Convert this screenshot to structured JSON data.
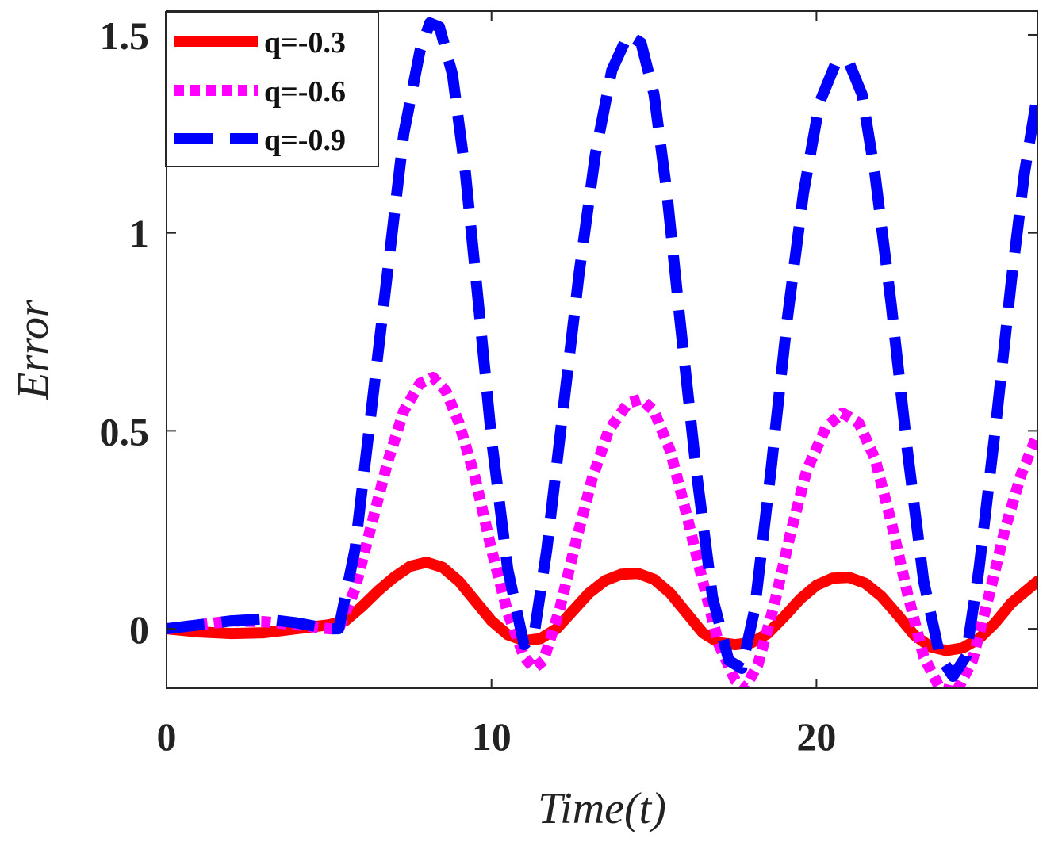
{
  "chart_data": {
    "type": "line",
    "title": "",
    "xlabel": "Time(t)",
    "ylabel": "Error",
    "xlim": [
      0,
      26.8
    ],
    "ylim": [
      -0.15,
      1.56
    ],
    "x_ticks": [
      0,
      10,
      20
    ],
    "x_tick_labels": [
      "0",
      "10",
      "20"
    ],
    "y_ticks": [
      0,
      0.5,
      1,
      1.5
    ],
    "y_tick_labels": [
      "0",
      "0.5",
      "1",
      "1.5"
    ],
    "grid": false,
    "legend_position": "top-left",
    "series": [
      {
        "name": "q=-0.3",
        "color": "#ff0000",
        "style": "solid",
        "x": [
          0,
          1,
          2,
          3,
          4,
          5,
          5.5,
          6,
          6.5,
          7,
          7.5,
          8,
          8.5,
          9,
          9.5,
          10,
          10.5,
          11,
          11.5,
          12,
          12.5,
          13,
          13.5,
          14,
          14.5,
          15,
          15.5,
          16,
          16.5,
          17,
          17.5,
          18,
          18.5,
          19,
          19.5,
          20,
          20.5,
          21,
          21.5,
          22,
          22.5,
          23,
          23.5,
          24,
          24.5,
          25,
          25.5,
          26,
          26.8
        ],
        "y": [
          0,
          -0.008,
          -0.012,
          -0.01,
          0.0,
          0.01,
          0.02,
          0.055,
          0.095,
          0.13,
          0.158,
          0.168,
          0.155,
          0.12,
          0.07,
          0.02,
          -0.015,
          -0.03,
          -0.025,
          0.0,
          0.045,
          0.09,
          0.122,
          0.138,
          0.14,
          0.125,
          0.09,
          0.04,
          -0.01,
          -0.035,
          -0.04,
          -0.035,
          -0.012,
          0.03,
          0.075,
          0.11,
          0.128,
          0.13,
          0.115,
          0.082,
          0.035,
          -0.015,
          -0.045,
          -0.055,
          -0.048,
          -0.025,
          0.015,
          0.065,
          0.12
        ]
      },
      {
        "name": "q=-0.6",
        "color": "#ff00ff",
        "style": "dotted",
        "x": [
          0,
          1,
          2,
          3,
          4,
          5,
          5.3,
          5.8,
          6.3,
          6.8,
          7.3,
          7.8,
          8.2,
          8.6,
          9.0,
          9.5,
          10.0,
          10.5,
          11.0,
          11.3,
          11.6,
          12.1,
          12.6,
          13.1,
          13.6,
          14.2,
          14.6,
          15.0,
          15.5,
          16.0,
          16.5,
          17.0,
          17.5,
          17.8,
          18.2,
          18.7,
          19.2,
          19.7,
          20.3,
          20.8,
          21.3,
          21.8,
          22.3,
          22.8,
          23.3,
          23.8,
          24.3,
          24.8,
          25.3,
          25.8,
          26.3,
          26.8
        ],
        "y": [
          0,
          0.01,
          0.02,
          0.018,
          0.01,
          0.0,
          0.0,
          0.1,
          0.26,
          0.42,
          0.55,
          0.62,
          0.635,
          0.6,
          0.52,
          0.38,
          0.2,
          0.04,
          -0.07,
          -0.1,
          -0.08,
          0.05,
          0.22,
          0.38,
          0.5,
          0.57,
          0.58,
          0.55,
          0.45,
          0.29,
          0.12,
          -0.04,
          -0.13,
          -0.15,
          -0.09,
          0.06,
          0.24,
          0.4,
          0.51,
          0.545,
          0.52,
          0.43,
          0.27,
          0.09,
          -0.07,
          -0.15,
          -0.16,
          -0.08,
          0.08,
          0.25,
          0.39,
          0.49
        ]
      },
      {
        "name": "q=-0.9",
        "color": "#0000ff",
        "style": "dashed",
        "x": [
          0,
          1,
          2,
          3,
          4,
          5,
          5.3,
          5.8,
          6.3,
          6.8,
          7.3,
          7.8,
          8.1,
          8.4,
          8.8,
          9.2,
          9.6,
          10.0,
          10.5,
          11.0,
          11.3,
          11.7,
          12.2,
          12.7,
          13.2,
          13.7,
          14.2,
          14.6,
          15.0,
          15.4,
          15.8,
          16.3,
          16.8,
          17.3,
          17.7,
          18.1,
          18.6,
          19.1,
          19.6,
          20.1,
          20.6,
          21.0,
          21.4,
          21.8,
          22.3,
          22.8,
          23.3,
          23.8,
          24.2,
          24.6,
          25.0,
          25.5,
          26.0,
          26.4,
          26.8
        ],
        "y": [
          0,
          0.01,
          0.02,
          0.025,
          0.015,
          0.0,
          0.0,
          0.2,
          0.55,
          0.9,
          1.25,
          1.46,
          1.53,
          1.52,
          1.4,
          1.15,
          0.82,
          0.48,
          0.15,
          -0.04,
          -0.02,
          0.2,
          0.55,
          0.9,
          1.2,
          1.41,
          1.5,
          1.48,
          1.35,
          1.1,
          0.78,
          0.4,
          0.08,
          -0.08,
          -0.1,
          0.05,
          0.4,
          0.78,
          1.1,
          1.33,
          1.43,
          1.43,
          1.35,
          1.15,
          0.82,
          0.45,
          0.12,
          -0.07,
          -0.12,
          -0.07,
          0.15,
          0.5,
          0.88,
          1.15,
          1.35
        ]
      }
    ]
  }
}
